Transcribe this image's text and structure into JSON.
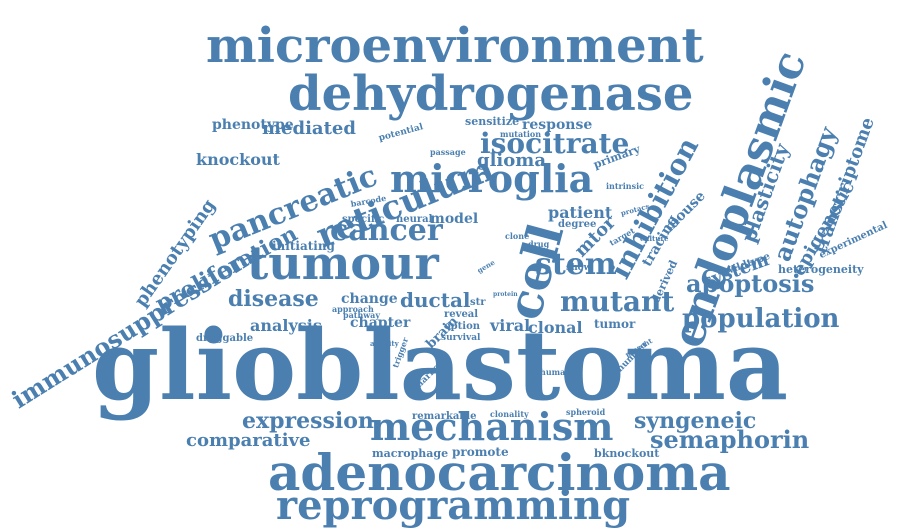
{
  "colors": {
    "word": "#4a7fb0",
    "background": "#ffffff"
  },
  "words": [
    {
      "id": "glioblastoma",
      "text": "glioblastoma"
    },
    {
      "id": "microenvironment",
      "text": "microenvironment"
    },
    {
      "id": "dehydrogenase",
      "text": "dehydrogenase"
    },
    {
      "id": "endoplasmic",
      "text": "endoplasmic"
    },
    {
      "id": "adenocarcinoma",
      "text": "adenocarcinoma"
    },
    {
      "id": "reprogramming",
      "text": "reprogramming"
    },
    {
      "id": "tumour",
      "text": "tumour"
    },
    {
      "id": "mechanism",
      "text": "mechanism"
    },
    {
      "id": "microglia",
      "text": "microglia"
    },
    {
      "id": "cell",
      "text": "cell"
    },
    {
      "id": "reticulum",
      "text": "reticulum"
    },
    {
      "id": "pancreatic",
      "text": "pancreatic"
    },
    {
      "id": "cancer",
      "text": "cancer"
    },
    {
      "id": "population",
      "text": "population"
    },
    {
      "id": "apoptosis",
      "text": "apoptosis"
    },
    {
      "id": "immunosuppression",
      "text": "immunosuppression"
    },
    {
      "id": "proliferation",
      "text": "proliferation"
    },
    {
      "id": "inhibition",
      "text": "inhibition"
    },
    {
      "id": "stem",
      "text": "stem"
    },
    {
      "id": "mutant",
      "text": "mutant"
    },
    {
      "id": "isocitrate",
      "text": "isocitrate"
    },
    {
      "id": "semaphorin",
      "text": "semaphorin"
    },
    {
      "id": "disease",
      "text": "disease"
    },
    {
      "id": "expression",
      "text": "expression"
    },
    {
      "id": "comparative",
      "text": "comparative"
    },
    {
      "id": "syngeneic",
      "text": "syngeneic"
    },
    {
      "id": "autophagy",
      "text": "autophagy"
    },
    {
      "id": "plasticity",
      "text": "plasticity"
    },
    {
      "id": "transcriptome",
      "text": "transcriptome"
    },
    {
      "id": "epigenetic",
      "text": "epigenetic"
    },
    {
      "id": "phenotyping",
      "text": "phenotyping"
    },
    {
      "id": "mediated",
      "text": "mediated"
    },
    {
      "id": "glioma",
      "text": "glioma"
    },
    {
      "id": "knockout",
      "text": "knockout"
    },
    {
      "id": "phenotype",
      "text": "phenotype"
    },
    {
      "id": "response",
      "text": "response"
    },
    {
      "id": "system",
      "text": "system"
    },
    {
      "id": "ductal",
      "text": "ductal"
    },
    {
      "id": "analysis",
      "text": "analysis"
    },
    {
      "id": "mtor",
      "text": "mtor"
    },
    {
      "id": "patient",
      "text": "patient"
    },
    {
      "id": "clonal",
      "text": "clonal"
    },
    {
      "id": "viral",
      "text": "viral"
    },
    {
      "id": "change",
      "text": "change"
    },
    {
      "id": "chapter",
      "text": "chapter"
    },
    {
      "id": "tracing",
      "text": "tracing"
    },
    {
      "id": "mouse",
      "text": "mouse"
    },
    {
      "id": "model",
      "text": "model"
    },
    {
      "id": "heterogeneity",
      "text": "heterogeneity"
    },
    {
      "id": "experimental",
      "text": "experimental"
    },
    {
      "id": "initiating",
      "text": "initiating"
    },
    {
      "id": "tumor",
      "text": "tumor"
    },
    {
      "id": "promote",
      "text": "promote"
    },
    {
      "id": "macrophage",
      "text": "macrophage"
    },
    {
      "id": "bknockout",
      "text": "bknockout"
    },
    {
      "id": "brain",
      "text": "brain"
    },
    {
      "id": "sensitize",
      "text": "sensitize"
    },
    {
      "id": "primary",
      "text": "primary"
    },
    {
      "id": "derived",
      "text": "derived"
    },
    {
      "id": "wildtype",
      "text": "wildtype"
    },
    {
      "id": "remarkable",
      "text": "remarkable"
    },
    {
      "id": "specific",
      "text": "specific"
    },
    {
      "id": "neural",
      "text": "neural"
    },
    {
      "id": "degree",
      "text": "degree"
    },
    {
      "id": "show",
      "text": "show"
    },
    {
      "id": "druggable",
      "text": "druggable"
    },
    {
      "id": "option",
      "text": "option"
    },
    {
      "id": "survival",
      "text": "survival"
    },
    {
      "id": "reveal",
      "text": "reveal"
    },
    {
      "id": "pathway",
      "text": "pathway"
    },
    {
      "id": "approach",
      "text": "approach"
    },
    {
      "id": "potential",
      "text": "potential"
    },
    {
      "id": "mutation",
      "text": "mutation"
    },
    {
      "id": "passage",
      "text": "passage"
    },
    {
      "id": "intrinsic",
      "text": "intrinsic"
    },
    {
      "id": "barcode",
      "text": "barcode"
    },
    {
      "id": "str",
      "text": "str"
    },
    {
      "id": "marker",
      "text": "marker"
    },
    {
      "id": "trigger",
      "text": "trigger"
    },
    {
      "id": "activity",
      "text": "activity"
    },
    {
      "id": "number",
      "text": "number"
    },
    {
      "id": "present",
      "text": "present"
    },
    {
      "id": "human",
      "text": "human"
    },
    {
      "id": "clonality",
      "text": "clonality"
    },
    {
      "id": "spheroid",
      "text": "spheroid"
    },
    {
      "id": "clone",
      "text": "clone"
    },
    {
      "id": "drug",
      "text": "drug"
    },
    {
      "id": "target",
      "text": "target"
    },
    {
      "id": "protacs",
      "text": "protacs"
    },
    {
      "id": "culture",
      "text": "culture"
    },
    {
      "id": "protein",
      "text": "protein"
    },
    {
      "id": "gene",
      "text": "gene"
    }
  ]
}
